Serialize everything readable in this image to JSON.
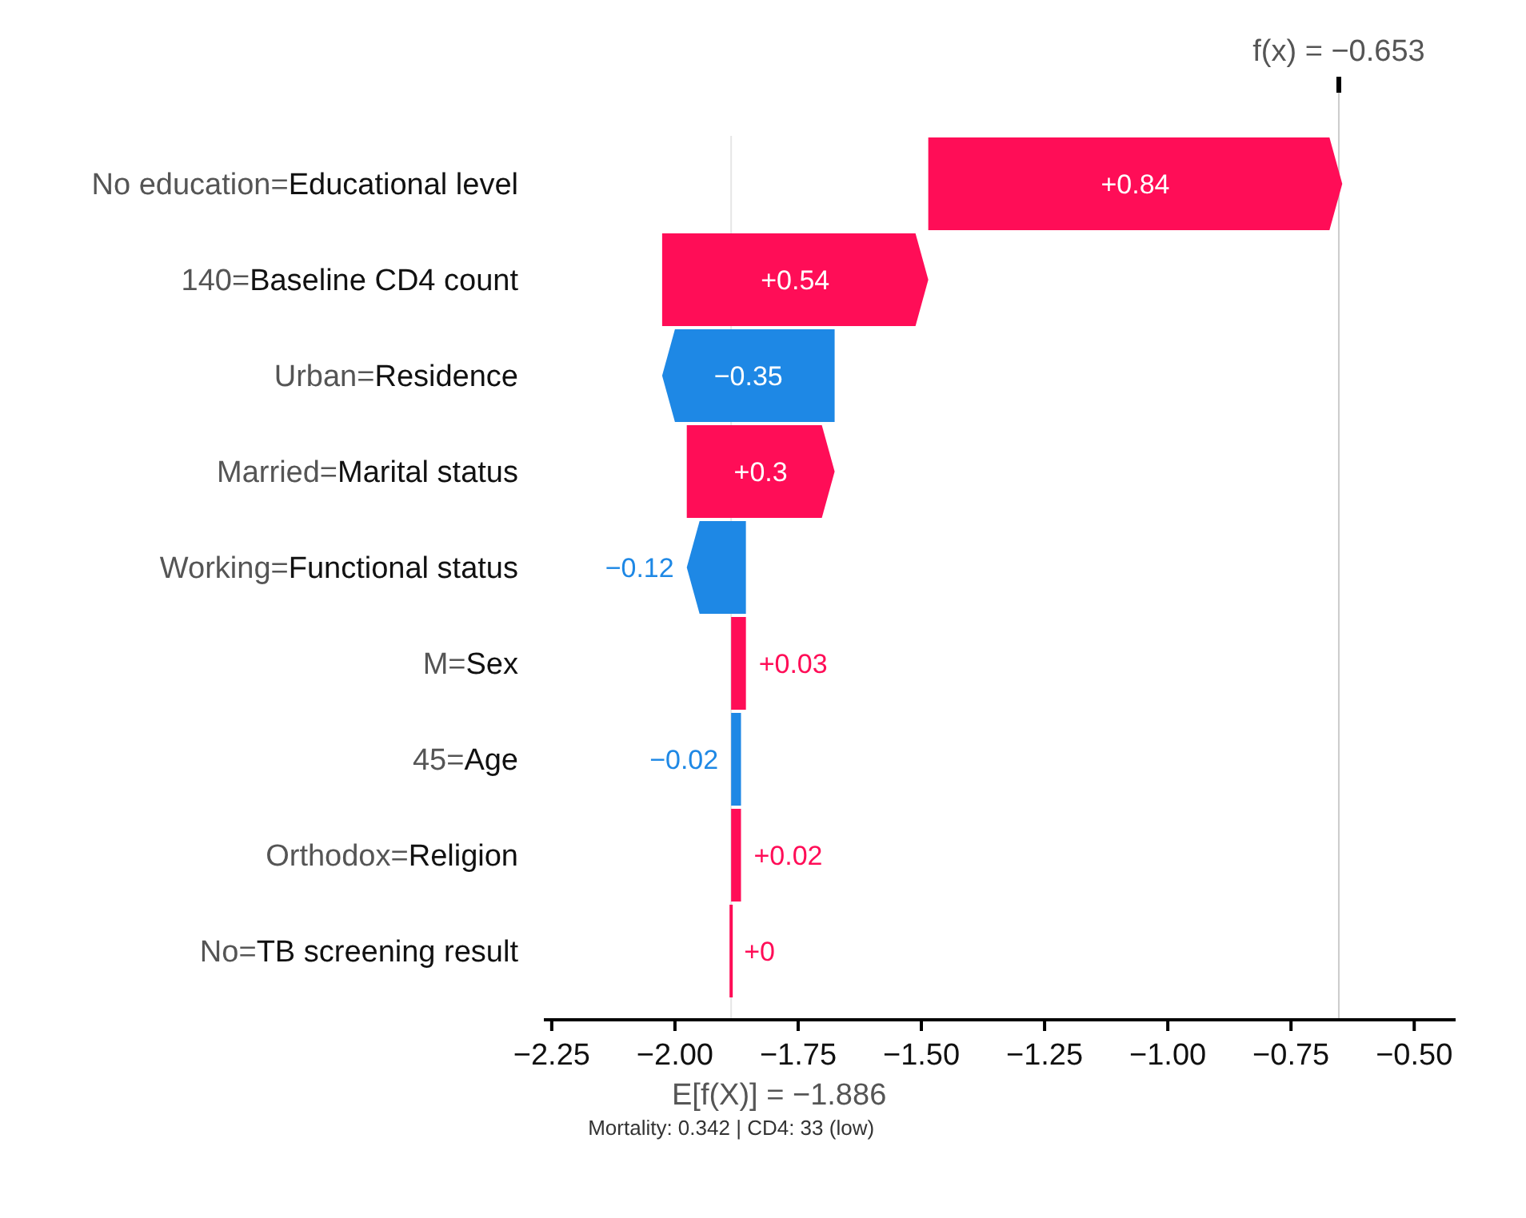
{
  "chart_data": {
    "type": "bar",
    "orientation": "horizontal",
    "categories": [
      "No education=Educational level",
      "140=Baseline CD4 count",
      "Urban=Residence",
      "Married=Marital status",
      "Working=Functional status",
      "M=Sex",
      "45=Age",
      "Orthodox=Religion",
      "No=TB screening result"
    ],
    "values": [
      0.84,
      0.54,
      -0.35,
      0.3,
      -0.12,
      0.03,
      -0.02,
      0.02,
      0
    ],
    "base": [
      -1.486,
      -2.026,
      -1.676,
      -1.976,
      -1.856,
      -1.886,
      -1.866,
      -1.886,
      -1.886
    ],
    "colors": [
      "#ff0d57",
      "#ff0d57",
      "#1e88e5",
      "#ff0d57",
      "#1e88e5",
      "#ff0d57",
      "#1e88e5",
      "#ff0d57",
      "#ff0d57"
    ],
    "value_labels": [
      "+0.84",
      "+0.54",
      "−0.35",
      "+0.3",
      "−0.12",
      "+0.03",
      "−0.02",
      "+0.02",
      "+0"
    ],
    "xlim": [
      -2.266,
      -0.416
    ],
    "xticks": [
      {
        "value": -2.25,
        "label": "−2.25"
      },
      {
        "value": -2,
        "label": "−2.00"
      },
      {
        "value": -1.75,
        "label": "−1.75"
      },
      {
        "value": -1.5,
        "label": "−1.50"
      },
      {
        "value": -1.25,
        "label": "−1.25"
      },
      {
        "value": -1,
        "label": "−1.00"
      },
      {
        "value": -0.75,
        "label": "−0.75"
      },
      {
        "value": -0.5,
        "label": "−0.50"
      }
    ],
    "ref_lines": [
      {
        "axis": "x",
        "value": -0.653,
        "label": "f(x) = −0.653",
        "color": "#cccccc"
      },
      {
        "axis": "x",
        "value": -1.886,
        "label": "E[f(X)] = −1.886",
        "color": "#e6e6e6"
      }
    ],
    "annotations": [
      "Mortality: 0.342 | CD4: 33 (low)"
    ]
  }
}
